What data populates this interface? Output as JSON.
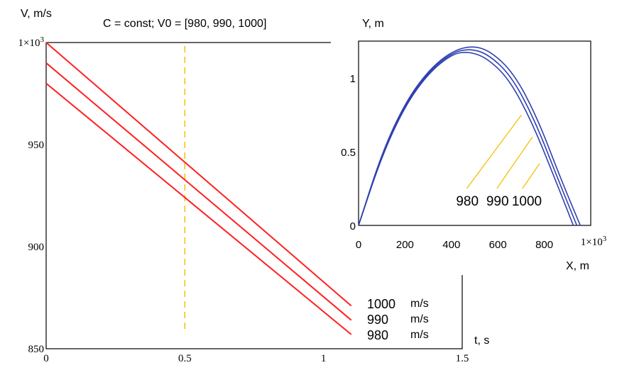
{
  "header": {
    "left_ylabel": "V, m/s",
    "title": "C = const; V0 = [980, 990, 1000]",
    "right_ylabel": "Y, m"
  },
  "chart_data": [
    {
      "type": "line",
      "title": "C = const; V0 = [980, 990, 1000]",
      "xlabel": "t, s",
      "ylabel": "V, m/s",
      "xlim": [
        0,
        1.5
      ],
      "ylim": [
        850,
        1000
      ],
      "x_ticks": [
        0,
        0.5,
        1,
        1.5
      ],
      "x_tick_labels": [
        "0",
        "0.5",
        "1",
        "1.5"
      ],
      "y_ticks": [
        850,
        900,
        950,
        1000
      ],
      "y_tick_labels": [
        "850",
        "900",
        "950",
        "1×10³"
      ],
      "grid": false,
      "vline": {
        "x": 0.5,
        "color": "#f5c000"
      },
      "series": [
        {
          "name": "1000",
          "unit": "m/s",
          "color": "#ff2020",
          "x": [
            0,
            1.1
          ],
          "values": [
            1000,
            871
          ]
        },
        {
          "name": "990",
          "unit": "m/s",
          "color": "#ff2020",
          "x": [
            0,
            1.1
          ],
          "values": [
            990,
            864
          ]
        },
        {
          "name": "980",
          "unit": "m/s",
          "color": "#ff2020",
          "x": [
            0,
            1.1
          ],
          "values": [
            980,
            857
          ]
        }
      ],
      "legend_placement": "bottom-right"
    },
    {
      "type": "line",
      "xlabel": "X, m",
      "ylabel": "Y, m",
      "xlim": [
        0,
        1000
      ],
      "ylim": [
        0,
        1.25
      ],
      "x_ticks": [
        0,
        200,
        400,
        600,
        800,
        1000
      ],
      "x_tick_labels": [
        "0",
        "200",
        "400",
        "600",
        "800",
        "1×10³"
      ],
      "y_ticks": [
        0,
        0.5,
        1
      ],
      "y_tick_labels": [
        "0",
        "0.5",
        "1"
      ],
      "grid": false,
      "annotation_color": "#f5c000",
      "series": [
        {
          "name": "980",
          "color": "#3040b0",
          "x": [
            0,
            100,
            200,
            300,
            400,
            470,
            550,
            650,
            750,
            850,
            925
          ],
          "values": [
            0,
            0.47,
            0.81,
            1.03,
            1.16,
            1.18,
            1.14,
            0.99,
            0.69,
            0.3,
            0
          ]
        },
        {
          "name": "990",
          "color": "#3040b0",
          "x": [
            0,
            100,
            200,
            300,
            400,
            480,
            560,
            660,
            760,
            860,
            940
          ],
          "values": [
            0,
            0.48,
            0.82,
            1.04,
            1.17,
            1.2,
            1.16,
            1.01,
            0.71,
            0.31,
            0
          ]
        },
        {
          "name": "1000",
          "color": "#3040b0",
          "x": [
            0,
            100,
            200,
            300,
            400,
            490,
            570,
            670,
            770,
            870,
            955
          ],
          "values": [
            0,
            0.49,
            0.83,
            1.05,
            1.18,
            1.22,
            1.18,
            1.03,
            0.73,
            0.32,
            0
          ]
        }
      ],
      "annotations": [
        {
          "text": "980",
          "x": 420,
          "y": 0.25,
          "target_x": 900,
          "target_y": 0.75
        },
        {
          "text": "990",
          "x": 550,
          "y": 0.25,
          "target_x": 960,
          "target_y": 0.6
        },
        {
          "text": "1000",
          "x": 660,
          "y": 0.25,
          "target_x": 1000,
          "target_y": 0.42
        }
      ]
    }
  ]
}
